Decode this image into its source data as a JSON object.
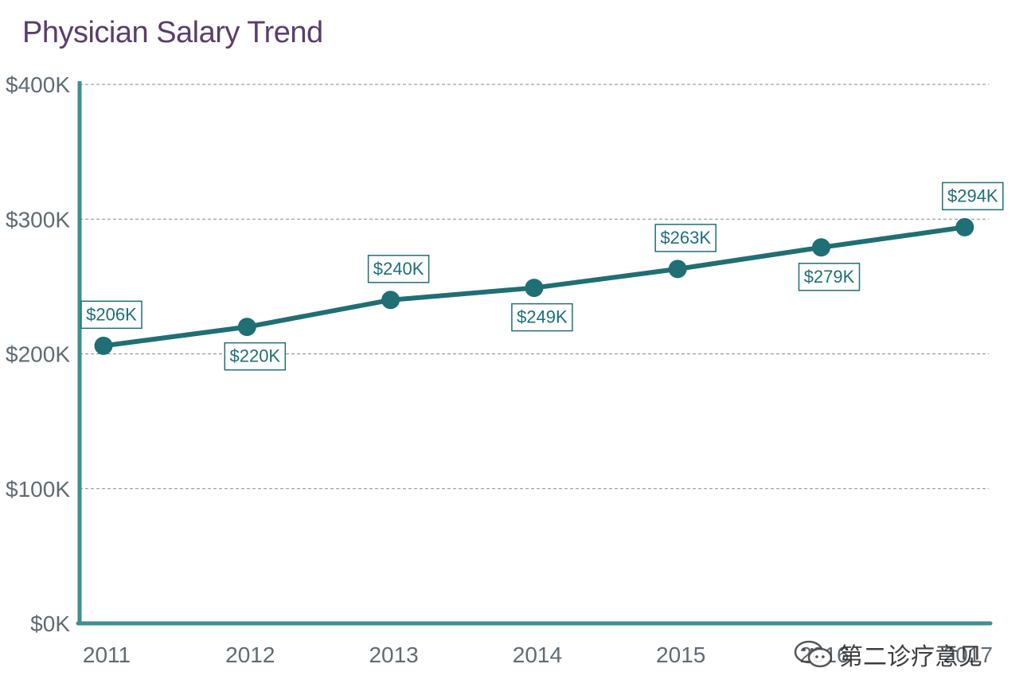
{
  "chart_data": {
    "type": "line",
    "title": "Physician Salary Trend",
    "xlabel": "",
    "ylabel": "",
    "categories": [
      "2011",
      "2012",
      "2013",
      "2014",
      "2015",
      "2016",
      "2017"
    ],
    "series": [
      {
        "values": [
          206,
          220,
          240,
          249,
          263,
          279,
          294
        ],
        "labels": [
          "$206K",
          "$220K",
          "$240K",
          "$249K",
          "$263K",
          "$279K",
          "$294K"
        ],
        "label_side": [
          "above",
          "below",
          "above",
          "below",
          "above",
          "below",
          "above"
        ],
        "color": "#1f6f75"
      }
    ],
    "ylim": [
      0,
      400
    ],
    "yticks": [
      0,
      100,
      200,
      300,
      400
    ],
    "ytick_labels": [
      "$0K",
      "$100K",
      "$200K",
      "$300K",
      "$400K"
    ],
    "grid": true,
    "legend": "none",
    "axis_color": "#3d8f92",
    "grid_color": "#8a8a8a"
  },
  "watermark": {
    "text": "第二诊疗意见",
    "icon": "wechat-icon"
  }
}
